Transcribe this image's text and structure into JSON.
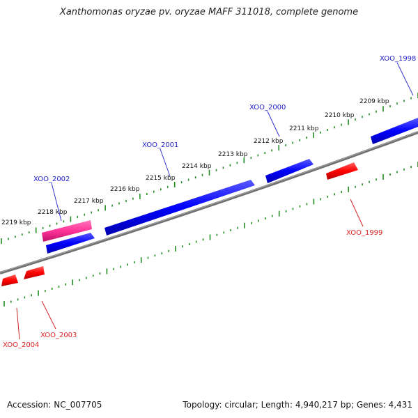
{
  "title": "Xanthomonas oryzae pv. oryzae MAFF 311018, complete genome",
  "accession_text": "Accession: NC_007705",
  "summary_text": "Topology: circular; Length: 4,940,217 bp; Genes: 4,431",
  "ticks": [
    {
      "label": "2209 kbp"
    },
    {
      "label": "2210 kbp"
    },
    {
      "label": "2211 kbp"
    },
    {
      "label": "2212 kbp"
    },
    {
      "label": "2213 kbp"
    },
    {
      "label": "2214 kbp"
    },
    {
      "label": "2215 kbp"
    },
    {
      "label": "2216 kbp"
    },
    {
      "label": "2217 kbp"
    },
    {
      "label": "2218 kbp"
    },
    {
      "label": "2219 kbp"
    }
  ],
  "genes": [
    {
      "label": "XOO_1998",
      "strand": "forward",
      "color": "#0000ff"
    },
    {
      "label": "XOO_2000",
      "strand": "forward",
      "color": "#0000ff"
    },
    {
      "label": "XOO_2001",
      "strand": "forward",
      "color": "#0000ff"
    },
    {
      "label": "XOO_2002",
      "strand": "forward",
      "color": "#0000ff"
    },
    {
      "label": "XOO_1999",
      "strand": "reverse",
      "color": "#ff0000"
    },
    {
      "label": "XOO_2003",
      "strand": "reverse",
      "color": "#ff0000"
    },
    {
      "label": "XOO_2004",
      "strand": "reverse",
      "color": "#ff0000"
    }
  ],
  "colors": {
    "forward_gene": "#0000ff",
    "reverse_gene": "#ff0000",
    "highlight_gene": "#ff3399",
    "backbone": "#808080",
    "tick": "#228b22"
  }
}
